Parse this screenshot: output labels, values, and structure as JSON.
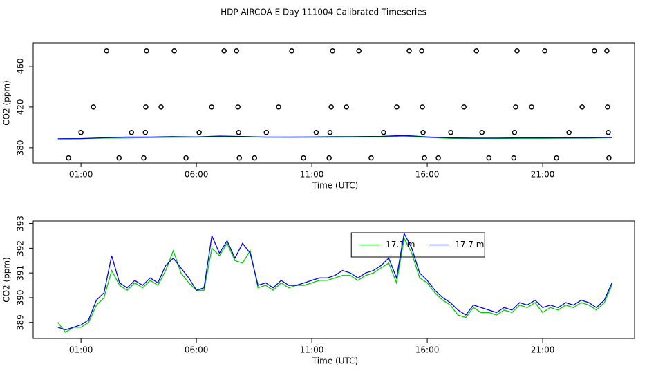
{
  "chart_data": [
    {
      "type": "line",
      "title": "HDP AIRCOA E  Day 111004  Calibrated Timeseries",
      "y_label": "CO2 (ppm)",
      "x_label": "Time (UTC)",
      "xlim": [
        -1.07,
        24.98
      ],
      "ylim": [
        365,
        483
      ],
      "xticks": [
        {
          "value": 1,
          "label": "01:00"
        },
        {
          "value": 6,
          "label": "06:00"
        },
        {
          "value": 11,
          "label": "11:00"
        },
        {
          "value": 16,
          "label": "16:00"
        },
        {
          "value": 21,
          "label": "21:00"
        }
      ],
      "yticks": [
        380,
        420,
        460
      ],
      "x": [
        0,
        1,
        2,
        3,
        4,
        5,
        6,
        7,
        8,
        9,
        10,
        11,
        12,
        13,
        14,
        15,
        16,
        17,
        18,
        19,
        20,
        21,
        22,
        23,
        24
      ],
      "series": [
        {
          "color": "#00cc00",
          "values": [
            388.8,
            389.0,
            389.5,
            389.6,
            390.0,
            390.3,
            390.4,
            391.0,
            390.9,
            390.3,
            390.2,
            390.3,
            390.4,
            390.5,
            390.8,
            391.4,
            390.1,
            389.3,
            389.2,
            389.1,
            389.3,
            389.3,
            389.4,
            389.5,
            389.8
          ]
        },
        {
          "color": "#0000ee",
          "values": [
            388.8,
            389.0,
            389.8,
            390.5,
            390.5,
            390.9,
            390.6,
            391.4,
            391.0,
            390.5,
            390.5,
            390.6,
            390.8,
            390.9,
            391.1,
            392.0,
            390.6,
            389.7,
            389.5,
            389.5,
            389.7,
            389.7,
            389.7,
            389.7,
            390.2
          ]
        }
      ],
      "points": {
        "color": "#000000",
        "x": [
          2.11,
          3.84,
          5.04,
          7.2,
          7.74,
          10.13,
          11.9,
          13.04,
          15.22,
          15.76,
          18.13,
          19.89,
          21.09,
          23.24,
          23.78,
          1.54,
          3.81,
          4.47,
          6.66,
          7.8,
          9.56,
          11.84,
          12.5,
          14.68,
          15.79,
          17.59,
          19.83,
          20.52,
          22.71,
          23.81,
          1.0,
          3.19,
          3.79,
          6.12,
          7.83,
          9.03,
          11.19,
          11.79,
          14.11,
          15.82,
          17.02,
          18.37,
          19.78,
          22.14,
          23.84,
          0.46,
          2.65,
          3.72,
          5.55,
          7.86,
          8.52,
          10.64,
          11.75,
          13.57,
          15.88,
          16.48,
          18.67,
          19.75,
          21.6,
          23.87
        ],
        "values": [
          475,
          475,
          475,
          475,
          475,
          475,
          475,
          475,
          475,
          475,
          475,
          475,
          475,
          475,
          475,
          420,
          420,
          420,
          420,
          420,
          420,
          420,
          420,
          420,
          420,
          420,
          420,
          420,
          420,
          420,
          395,
          395,
          395,
          395,
          395,
          395,
          395,
          395,
          395,
          395,
          395,
          395,
          395,
          395,
          395,
          370,
          370,
          370,
          370,
          370,
          370,
          370,
          370,
          370,
          370,
          370,
          370,
          370,
          370,
          370
        ]
      }
    },
    {
      "type": "line",
      "y_label": "CO2 (ppm)",
      "x_label": "Time (UTC)",
      "xlim": [
        -1.07,
        24.98
      ],
      "ylim": [
        388.35,
        393.1
      ],
      "xticks": [
        {
          "value": 1,
          "label": "01:00"
        },
        {
          "value": 6,
          "label": "06:00"
        },
        {
          "value": 11,
          "label": "11:00"
        },
        {
          "value": 16,
          "label": "16:00"
        },
        {
          "value": 21,
          "label": "21:00"
        }
      ],
      "yticks": [
        389,
        390,
        391,
        392,
        393
      ],
      "legend": "top-center",
      "x": [
        0,
        0.33,
        0.67,
        1,
        1.33,
        1.67,
        2,
        2.33,
        2.67,
        3,
        3.33,
        3.67,
        4,
        4.33,
        4.67,
        5,
        5.33,
        5.67,
        6,
        6.33,
        6.67,
        7,
        7.33,
        7.67,
        8,
        8.33,
        8.67,
        9,
        9.33,
        9.67,
        10,
        10.33,
        10.67,
        11,
        11.33,
        11.67,
        12,
        12.33,
        12.67,
        13,
        13.33,
        13.67,
        14,
        14.33,
        14.67,
        15,
        15.33,
        15.67,
        16,
        16.33,
        16.67,
        17,
        17.33,
        17.67,
        18,
        18.33,
        18.67,
        19,
        19.33,
        19.67,
        20,
        20.33,
        20.67,
        21,
        21.33,
        21.67,
        22,
        22.33,
        22.67,
        23,
        23.33,
        23.67,
        24
      ],
      "series": [
        {
          "name": "17.1 m",
          "color": "#00cc00",
          "values": [
            389.0,
            388.6,
            388.8,
            388.8,
            389.0,
            389.7,
            390.0,
            391.1,
            390.5,
            390.3,
            390.6,
            390.4,
            390.7,
            390.5,
            391.1,
            391.9,
            391.0,
            390.6,
            390.3,
            390.3,
            392.0,
            391.7,
            392.2,
            391.5,
            391.4,
            391.9,
            390.4,
            390.5,
            390.3,
            390.6,
            390.4,
            390.5,
            390.5,
            390.6,
            390.7,
            390.7,
            390.8,
            390.9,
            390.9,
            390.7,
            390.9,
            391.0,
            391.2,
            391.4,
            390.6,
            392.4,
            391.8,
            390.8,
            390.6,
            390.2,
            389.9,
            389.7,
            389.3,
            389.2,
            389.6,
            389.4,
            389.4,
            389.3,
            389.5,
            389.4,
            389.7,
            389.6,
            389.8,
            389.4,
            389.6,
            389.5,
            389.7,
            389.6,
            389.8,
            389.7,
            389.5,
            389.8,
            390.5
          ]
        },
        {
          "name": "17.7 m",
          "color": "#0000ee",
          "values": [
            388.8,
            388.7,
            388.8,
            388.9,
            389.1,
            389.9,
            390.2,
            391.7,
            390.6,
            390.4,
            390.7,
            390.5,
            390.8,
            390.6,
            391.3,
            391.6,
            391.2,
            390.8,
            390.3,
            390.4,
            392.5,
            391.8,
            392.3,
            391.6,
            392.2,
            391.8,
            390.5,
            390.6,
            390.4,
            390.7,
            390.5,
            390.5,
            390.6,
            390.7,
            390.8,
            390.8,
            390.9,
            391.1,
            391.0,
            390.8,
            391.0,
            391.1,
            391.3,
            391.6,
            390.8,
            392.6,
            392.0,
            391.0,
            390.7,
            390.3,
            390.0,
            389.8,
            389.5,
            389.3,
            389.7,
            389.6,
            389.5,
            389.4,
            389.6,
            389.5,
            389.8,
            389.7,
            389.9,
            389.6,
            389.7,
            389.6,
            389.8,
            389.7,
            389.9,
            389.8,
            389.6,
            389.9,
            390.6
          ]
        }
      ]
    }
  ]
}
